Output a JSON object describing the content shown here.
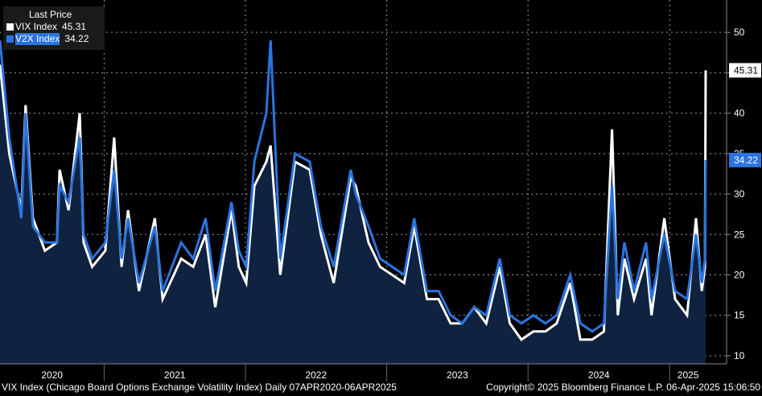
{
  "legend": {
    "title": "Last Price",
    "items": [
      {
        "name": "VIX Index",
        "value": "45.31",
        "color": "#ffffff"
      },
      {
        "name": "V2X Index",
        "value": "34.22",
        "color": "#2a74e0"
      }
    ]
  },
  "footer": {
    "left": "VIX Index (Chicago Board Options Exchange Volatility Index)  Daily 07APR2020-06APR2025",
    "right": "Copyright© 2025 Bloomberg Finance L.P.    06-Apr-2025 15:06:50"
  },
  "colors": {
    "background": "#000000",
    "vix": "#ffffff",
    "v2x": "#2a74e0",
    "area": "#0f2340",
    "grid": "#9a9a9a"
  },
  "chart_data": {
    "type": "line",
    "title": "",
    "xlabel": "",
    "ylabel": "",
    "x_range": [
      "2020-04-07",
      "2025-04-06"
    ],
    "ylim": [
      9,
      54
    ],
    "yticks": [
      10,
      15,
      20,
      25,
      30,
      35,
      40,
      45,
      50
    ],
    "xticks": [
      "2020",
      "2021",
      "2022",
      "2023",
      "2024",
      "2025"
    ],
    "grid": true,
    "legend_position": "top-left",
    "last_values": {
      "VIX Index": "45.31",
      "V2X Index": "34.22"
    },
    "series": [
      {
        "name": "VIX Index",
        "color": "#ffffff",
        "x": [
          "2020-04-07",
          "2020-05-01",
          "2020-06-01",
          "2020-06-12",
          "2020-07-01",
          "2020-08-01",
          "2020-09-01",
          "2020-09-08",
          "2020-10-01",
          "2020-10-30",
          "2020-11-09",
          "2020-12-01",
          "2021-01-04",
          "2021-01-27",
          "2021-02-15",
          "2021-03-04",
          "2021-04-01",
          "2021-05-12",
          "2021-06-01",
          "2021-07-19",
          "2021-08-19",
          "2021-09-20",
          "2021-10-15",
          "2021-11-26",
          "2021-12-15",
          "2022-01-03",
          "2022-01-24",
          "2022-02-24",
          "2022-03-07",
          "2022-04-01",
          "2022-05-09",
          "2022-06-16",
          "2022-07-15",
          "2022-08-17",
          "2022-09-30",
          "2022-10-13",
          "2022-11-15",
          "2022-12-15",
          "2023-01-15",
          "2023-02-15",
          "2023-03-13",
          "2023-04-15",
          "2023-05-15",
          "2023-06-15",
          "2023-07-15",
          "2023-08-15",
          "2023-09-15",
          "2023-10-20",
          "2023-11-15",
          "2023-12-15",
          "2024-01-15",
          "2024-02-15",
          "2024-03-15",
          "2024-04-19",
          "2024-05-15",
          "2024-06-15",
          "2024-07-15",
          "2024-08-05",
          "2024-08-20",
          "2024-09-06",
          "2024-10-01",
          "2024-11-01",
          "2024-11-15",
          "2024-12-18",
          "2025-01-15",
          "2025-02-15",
          "2025-03-10",
          "2025-03-25",
          "2025-04-02",
          "2025-04-04"
        ],
        "values": [
          46,
          35,
          28,
          41,
          27,
          23,
          24,
          33,
          28,
          40,
          24,
          21,
          23,
          37,
          21,
          28,
          18,
          27,
          17,
          22,
          21,
          25,
          16,
          28,
          21,
          19,
          31,
          34,
          36,
          20,
          34,
          33,
          25,
          19,
          32,
          31,
          24,
          21,
          20,
          19,
          26,
          17,
          17,
          14,
          14,
          16,
          14,
          21,
          14,
          12,
          13,
          13,
          14,
          19,
          12,
          12,
          13,
          38,
          15,
          22,
          17,
          22,
          15,
          27,
          17,
          15,
          27,
          18,
          21,
          45.3
        ]
      },
      {
        "name": "V2X Index",
        "color": "#2a74e0",
        "x": [
          "2020-04-07",
          "2020-05-01",
          "2020-06-01",
          "2020-06-12",
          "2020-07-01",
          "2020-08-01",
          "2020-09-01",
          "2020-09-08",
          "2020-10-01",
          "2020-10-30",
          "2020-11-09",
          "2020-12-01",
          "2021-01-04",
          "2021-01-27",
          "2021-02-15",
          "2021-03-04",
          "2021-04-01",
          "2021-05-12",
          "2021-06-01",
          "2021-07-19",
          "2021-08-19",
          "2021-09-20",
          "2021-10-15",
          "2021-11-26",
          "2021-12-15",
          "2022-01-03",
          "2022-01-24",
          "2022-02-24",
          "2022-03-07",
          "2022-04-01",
          "2022-05-09",
          "2022-06-16",
          "2022-07-15",
          "2022-08-17",
          "2022-09-30",
          "2022-10-13",
          "2022-11-15",
          "2022-12-15",
          "2023-01-15",
          "2023-02-15",
          "2023-03-13",
          "2023-04-15",
          "2023-05-15",
          "2023-06-15",
          "2023-07-15",
          "2023-08-15",
          "2023-09-15",
          "2023-10-20",
          "2023-11-15",
          "2023-12-15",
          "2024-01-15",
          "2024-02-15",
          "2024-03-15",
          "2024-04-19",
          "2024-05-15",
          "2024-06-15",
          "2024-07-15",
          "2024-08-05",
          "2024-08-20",
          "2024-09-06",
          "2024-10-01",
          "2024-11-01",
          "2024-11-15",
          "2024-12-18",
          "2025-01-15",
          "2025-02-15",
          "2025-03-10",
          "2025-03-25",
          "2025-04-02",
          "2025-04-04"
        ],
        "values": [
          49,
          37,
          27,
          40,
          26,
          24,
          24,
          31,
          29,
          37,
          25,
          22,
          24,
          33,
          22,
          27,
          19,
          26,
          18,
          24,
          22,
          27,
          18,
          29,
          23,
          21,
          34,
          40,
          49,
          22,
          35,
          34,
          26,
          21,
          33,
          30,
          26,
          22,
          21,
          20,
          27,
          18,
          18,
          15,
          14,
          16,
          15,
          22,
          15,
          14,
          15,
          14,
          15,
          20,
          14,
          13,
          14,
          31,
          17,
          24,
          18,
          24,
          17,
          25,
          18,
          17,
          25,
          19,
          22,
          34.2
        ]
      }
    ]
  }
}
